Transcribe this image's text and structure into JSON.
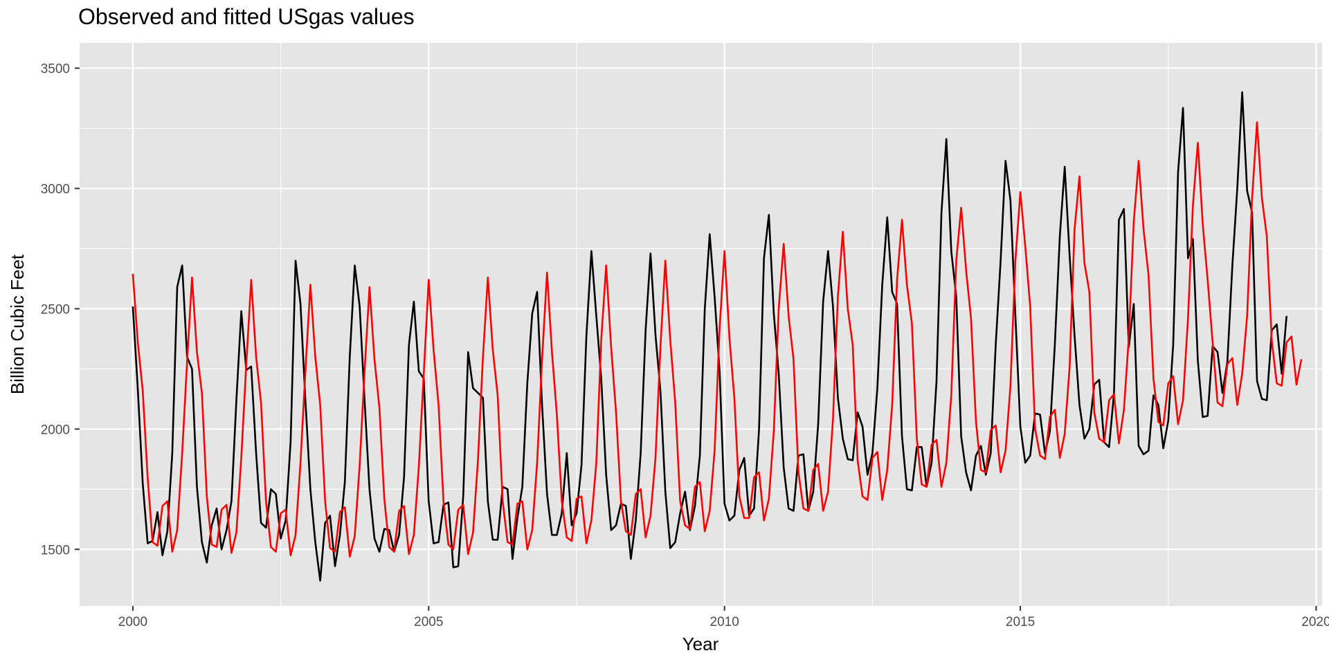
{
  "chart_data": {
    "type": "line",
    "title": "Observed and fitted USgas values",
    "xlabel": "Year",
    "ylabel": "Billion Cubic Feet",
    "xlim": [
      1999.1,
      2020.1
    ],
    "ylim": [
      1265,
      3605
    ],
    "x_ticks": [
      2000,
      2005,
      2010,
      2015,
      2020
    ],
    "y_ticks": [
      1500,
      2000,
      2500,
      3000,
      3500
    ],
    "grid": true,
    "legend": "none",
    "start": 2000,
    "freq": 12,
    "series": [
      {
        "color": "#000000",
        "values": [
          2510,
          2165,
          1775,
          1525,
          1535,
          1655,
          1475,
          1575,
          1900,
          2590,
          2680,
          2300,
          2250,
          1760,
          1530,
          1445,
          1600,
          1670,
          1500,
          1580,
          1700,
          2120,
          2490,
          2245,
          2260,
          1900,
          1610,
          1590,
          1750,
          1730,
          1545,
          1620,
          1950,
          2700,
          2520,
          2120,
          1750,
          1530,
          1370,
          1610,
          1640,
          1430,
          1560,
          1780,
          2300,
          2680,
          2510,
          2120,
          1750,
          1545,
          1490,
          1585,
          1580,
          1490,
          1560,
          1800,
          2350,
          2530,
          2240,
          2210,
          1700,
          1525,
          1530,
          1685,
          1695,
          1425,
          1430,
          1720,
          2320,
          2170,
          2150,
          2130,
          1700,
          1540,
          1540,
          1760,
          1750,
          1460,
          1630,
          1760,
          2190,
          2480,
          2570,
          2100,
          1730,
          1560,
          1560,
          1650,
          1900,
          1600,
          1650,
          1850,
          2390,
          2740,
          2470,
          2210,
          1810,
          1580,
          1600,
          1690,
          1680,
          1460,
          1620,
          1900,
          2410,
          2730,
          2390,
          2160,
          1740,
          1505,
          1530,
          1650,
          1740,
          1580,
          1680,
          1890,
          2500,
          2810,
          2550,
          2240,
          1690,
          1620,
          1640,
          1830,
          1880,
          1640,
          1670,
          2000,
          2710,
          2890,
          2480,
          2230,
          1840,
          1670,
          1660,
          1890,
          1895,
          1660,
          1740,
          2020,
          2530,
          2740,
          2510,
          2130,
          1960,
          1875,
          1870,
          2070,
          2010,
          1810,
          1900,
          2170,
          2600,
          2880,
          2570,
          2520,
          1970,
          1750,
          1745,
          1925,
          1925,
          1760,
          1860,
          2200,
          2900,
          3205,
          2740,
          2550,
          1970,
          1820,
          1745,
          1890,
          1930,
          1810,
          1900,
          2350,
          2700,
          3115,
          2950,
          2470,
          2010,
          1860,
          1890,
          2065,
          2060,
          1900,
          1990,
          2350,
          2800,
          3090,
          2720,
          2390,
          2100,
          1960,
          2000,
          2185,
          2205,
          1945,
          1925,
          2150,
          2870,
          2915,
          2340,
          2520,
          1930,
          1895,
          1910,
          2140,
          2100,
          1920,
          2035,
          2350,
          3070,
          3335,
          2710,
          2790,
          2285,
          2050,
          2055,
          2345,
          2320,
          2150,
          2280,
          2680,
          3000,
          3400,
          2990,
          2900,
          2200,
          2125,
          2120,
          2410,
          2435,
          2230,
          2470
        ]
      },
      {
        "color": "#ff0000",
        "values": [
          2645,
          2360,
          2160,
          1800,
          1530,
          1515,
          1680,
          1700,
          1490,
          1580,
          1900,
          2280,
          2630,
          2320,
          2150,
          1720,
          1520,
          1510,
          1665,
          1685,
          1485,
          1570,
          1880,
          2270,
          2620,
          2300,
          2110,
          1700,
          1510,
          1490,
          1650,
          1665,
          1475,
          1560,
          1860,
          2240,
          2600,
          2300,
          2100,
          1700,
          1505,
          1490,
          1655,
          1675,
          1470,
          1555,
          1850,
          2240,
          2590,
          2290,
          2090,
          1710,
          1510,
          1490,
          1660,
          1680,
          1480,
          1560,
          1845,
          2230,
          2620,
          2330,
          2100,
          1700,
          1520,
          1500,
          1665,
          1685,
          1480,
          1570,
          1870,
          2300,
          2630,
          2330,
          2140,
          1700,
          1530,
          1520,
          1690,
          1700,
          1500,
          1580,
          1860,
          2290,
          2650,
          2320,
          2060,
          1700,
          1550,
          1535,
          1710,
          1720,
          1525,
          1620,
          1860,
          2370,
          2680,
          2340,
          2070,
          1700,
          1575,
          1560,
          1730,
          1750,
          1550,
          1640,
          1880,
          2340,
          2700,
          2370,
          2110,
          1700,
          1600,
          1585,
          1760,
          1780,
          1575,
          1660,
          1910,
          2420,
          2740,
          2380,
          2130,
          1720,
          1630,
          1630,
          1800,
          1820,
          1620,
          1710,
          1990,
          2500,
          2770,
          2470,
          2290,
          1820,
          1670,
          1660,
          1830,
          1855,
          1660,
          1740,
          2040,
          2550,
          2820,
          2500,
          2350,
          1870,
          1720,
          1705,
          1880,
          1905,
          1705,
          1830,
          2100,
          2620,
          2870,
          2600,
          2440,
          1960,
          1770,
          1760,
          1935,
          1955,
          1760,
          1860,
          2140,
          2700,
          2920,
          2660,
          2460,
          2030,
          1830,
          1820,
          1995,
          2015,
          1820,
          1910,
          2180,
          2700,
          2985,
          2760,
          2510,
          2000,
          1890,
          1875,
          2050,
          2080,
          1880,
          1980,
          2260,
          2830,
          3050,
          2690,
          2570,
          2070,
          1960,
          1945,
          2120,
          2145,
          1940,
          2080,
          2380,
          2860,
          3115,
          2830,
          2640,
          2210,
          2030,
          2015,
          2190,
          2220,
          2020,
          2120,
          2460,
          2930,
          3190,
          2850,
          2620,
          2360,
          2110,
          2095,
          2270,
          2295,
          2100,
          2230,
          2470,
          2960,
          3275,
          2960,
          2800,
          2370,
          2190,
          2180,
          2360,
          2385,
          2185,
          2290
        ]
      }
    ]
  }
}
